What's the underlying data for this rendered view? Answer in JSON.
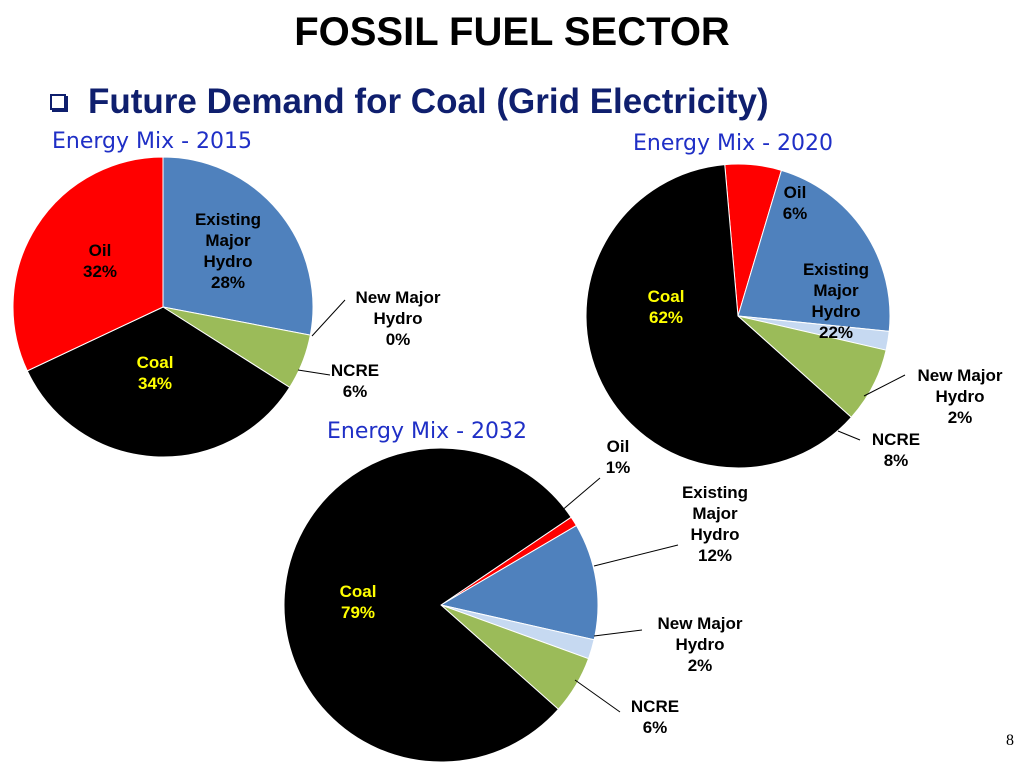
{
  "slide": {
    "title": "FOSSIL FUEL SECTOR",
    "bullet": "Future Demand for Coal (Grid Electricity)",
    "page_number": "8"
  },
  "colors": {
    "title_text": "#000000",
    "bullet_text": "#0f1f6e",
    "chart_title_text": "#1f2fc6",
    "coal_label_text": "#ffff00"
  },
  "chart_data": [
    {
      "type": "pie",
      "title": "Energy Mix - 2015",
      "categories": [
        "Existing Major Hydro",
        "New Major Hydro",
        "NCRE",
        "Coal",
        "Oil"
      ],
      "values": [
        28,
        0,
        6,
        34,
        32
      ],
      "value_labels": [
        "28%",
        "0%",
        "6%",
        "34%",
        "32%"
      ],
      "colors": [
        "#4f81bd",
        "#c6d9f1",
        "#9bbb59",
        "#000000",
        "#ff0000"
      ]
    },
    {
      "type": "pie",
      "title": "Energy Mix - 2020",
      "categories": [
        "Oil",
        "Existing Major Hydro",
        "New Major Hydro",
        "NCRE",
        "Coal"
      ],
      "values": [
        6,
        22,
        2,
        8,
        62
      ],
      "value_labels": [
        "6%",
        "22%",
        "2%",
        "8%",
        "62%"
      ],
      "colors": [
        "#ff0000",
        "#4f81bd",
        "#c6d9f1",
        "#9bbb59",
        "#000000"
      ]
    },
    {
      "type": "pie",
      "title": "Energy Mix - 2032",
      "categories": [
        "Oil",
        "Existing Major Hydro",
        "New Major Hydro",
        "NCRE",
        "Coal"
      ],
      "values": [
        1,
        12,
        2,
        6,
        79
      ],
      "value_labels": [
        "1%",
        "12%",
        "2%",
        "6%",
        "79%"
      ],
      "colors": [
        "#ff0000",
        "#4f81bd",
        "#c6d9f1",
        "#9bbb59",
        "#000000"
      ]
    }
  ]
}
